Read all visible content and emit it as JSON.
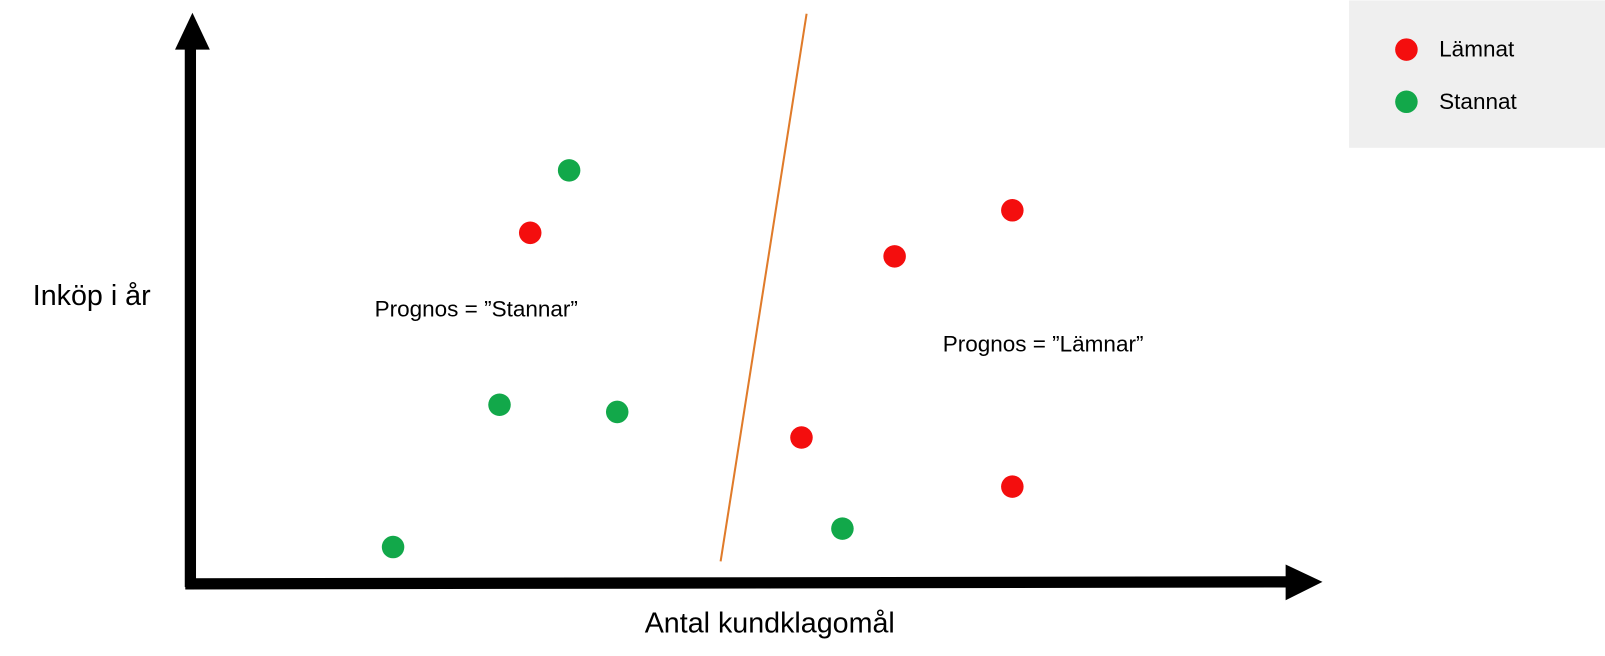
{
  "y_axis_label": "Inköp i år",
  "x_axis_label": "Antal kundklagomål",
  "legend": [
    {
      "label": "Lämnat"
    },
    {
      "label": "Stannat"
    }
  ],
  "annotations": [
    "Prognos = ”Stannar”",
    "Prognos = ”Lämnar”"
  ]
}
